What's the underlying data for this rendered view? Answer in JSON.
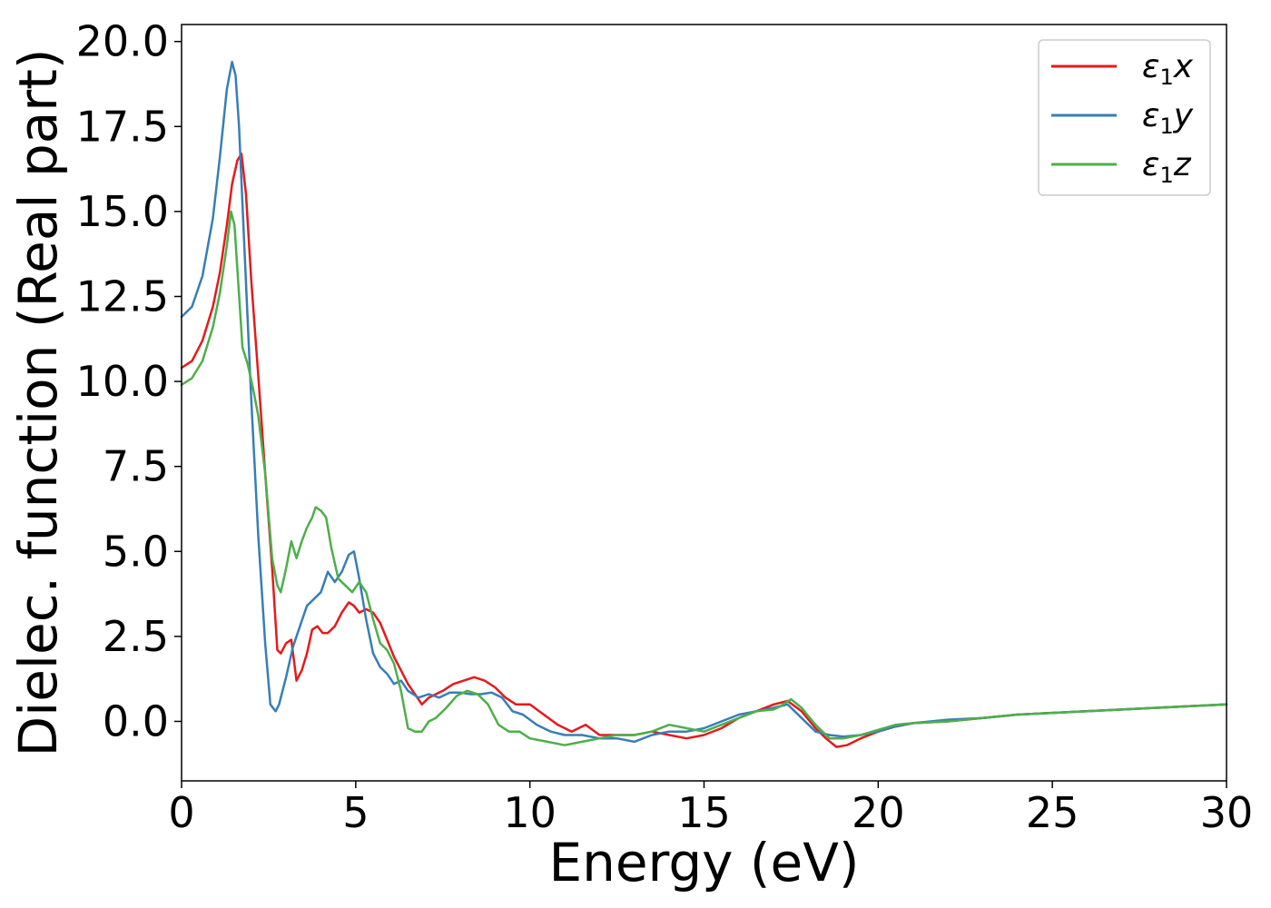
{
  "chart_data": {
    "type": "line",
    "title": "",
    "xlabel": "Energy (eV)",
    "ylabel": "Dielec. function (Real part)",
    "xlim": [
      0,
      30
    ],
    "ylim": [
      -1.75,
      20.5
    ],
    "xticks": [
      0,
      5,
      10,
      15,
      20,
      25,
      30
    ],
    "xtick_labels": [
      "0",
      "5",
      "10",
      "15",
      "20",
      "25",
      "30"
    ],
    "yticks": [
      0.0,
      2.5,
      5.0,
      7.5,
      10.0,
      12.5,
      15.0,
      17.5,
      20.0
    ],
    "ytick_labels": [
      "0.0",
      "2.5",
      "5.0",
      "7.5",
      "10.0",
      "12.5",
      "15.0",
      "17.5",
      "20.0"
    ],
    "grid": false,
    "legend_position": "top-right",
    "series": [
      {
        "name": "ε1x",
        "color": "#e41a1c",
        "x": [
          0,
          0.3,
          0.6,
          0.9,
          1.1,
          1.3,
          1.45,
          1.6,
          1.72,
          1.85,
          2.0,
          2.2,
          2.4,
          2.6,
          2.75,
          2.85,
          3.0,
          3.15,
          3.3,
          3.45,
          3.6,
          3.75,
          3.9,
          4.05,
          4.2,
          4.4,
          4.6,
          4.8,
          4.95,
          5.1,
          5.3,
          5.5,
          5.7,
          5.9,
          6.1,
          6.3,
          6.5,
          6.7,
          6.9,
          7.1,
          7.3,
          7.5,
          7.8,
          8.1,
          8.4,
          8.7,
          9.0,
          9.3,
          9.6,
          10.0,
          10.4,
          10.8,
          11.2,
          11.6,
          12.0,
          12.5,
          13.0,
          13.5,
          14.0,
          14.5,
          15.0,
          15.5,
          16.0,
          16.5,
          17.0,
          17.4,
          17.8,
          18.2,
          18.5,
          18.8,
          19.1,
          19.5,
          20.0,
          20.5,
          21.0,
          22.0,
          23.0,
          24.0,
          25.0,
          26.0,
          27.0,
          28.0,
          29.0,
          30.0
        ],
        "values": [
          10.4,
          10.6,
          11.2,
          12.2,
          13.2,
          14.6,
          15.8,
          16.5,
          16.7,
          15.5,
          13.0,
          10.2,
          7.3,
          4.5,
          2.1,
          2.0,
          2.3,
          2.4,
          1.2,
          1.5,
          2.0,
          2.7,
          2.8,
          2.6,
          2.6,
          2.8,
          3.2,
          3.5,
          3.4,
          3.2,
          3.3,
          3.2,
          2.9,
          2.4,
          1.9,
          1.5,
          1.1,
          0.8,
          0.5,
          0.7,
          0.8,
          0.9,
          1.1,
          1.2,
          1.3,
          1.2,
          1.0,
          0.7,
          0.5,
          0.5,
          0.2,
          -0.1,
          -0.3,
          -0.1,
          -0.4,
          -0.4,
          -0.4,
          -0.3,
          -0.4,
          -0.5,
          -0.4,
          -0.2,
          0.1,
          0.3,
          0.5,
          0.6,
          0.3,
          -0.2,
          -0.5,
          -0.75,
          -0.7,
          -0.5,
          -0.3,
          -0.15,
          -0.05,
          0.0,
          0.1,
          0.2,
          0.25,
          0.3,
          0.35,
          0.4,
          0.45,
          0.5
        ]
      },
      {
        "name": "ε1y",
        "color": "#377eb8",
        "x": [
          0,
          0.3,
          0.6,
          0.9,
          1.1,
          1.3,
          1.45,
          1.55,
          1.65,
          1.8,
          2.0,
          2.2,
          2.4,
          2.55,
          2.7,
          2.8,
          3.0,
          3.2,
          3.4,
          3.6,
          3.8,
          4.0,
          4.2,
          4.4,
          4.6,
          4.8,
          4.95,
          5.1,
          5.3,
          5.5,
          5.7,
          5.9,
          6.1,
          6.3,
          6.5,
          6.8,
          7.1,
          7.4,
          7.7,
          8.0,
          8.3,
          8.6,
          8.9,
          9.2,
          9.5,
          9.8,
          10.2,
          10.6,
          11.0,
          11.5,
          12.0,
          12.5,
          13.0,
          13.5,
          14.0,
          14.5,
          15.0,
          15.5,
          16.0,
          16.5,
          17.0,
          17.4,
          17.8,
          18.2,
          18.6,
          19.0,
          19.5,
          20.0,
          20.5,
          21.0,
          22.0,
          23.0,
          24.0,
          25.0,
          26.0,
          27.0,
          28.0,
          29.0,
          30.0
        ],
        "values": [
          11.9,
          12.2,
          13.1,
          14.8,
          16.6,
          18.6,
          19.4,
          19.0,
          17.5,
          14.0,
          9.5,
          5.5,
          2.3,
          0.5,
          0.3,
          0.5,
          1.3,
          2.2,
          2.8,
          3.4,
          3.6,
          3.8,
          4.4,
          4.1,
          4.4,
          4.9,
          5.0,
          4.2,
          3.0,
          2.0,
          1.6,
          1.4,
          1.1,
          1.2,
          0.9,
          0.7,
          0.8,
          0.7,
          0.85,
          0.85,
          0.8,
          0.8,
          0.85,
          0.7,
          0.3,
          0.2,
          -0.1,
          -0.3,
          -0.4,
          -0.4,
          -0.5,
          -0.5,
          -0.6,
          -0.4,
          -0.3,
          -0.3,
          -0.2,
          0.0,
          0.2,
          0.3,
          0.4,
          0.5,
          0.1,
          -0.3,
          -0.4,
          -0.45,
          -0.4,
          -0.3,
          -0.15,
          -0.05,
          0.05,
          0.1,
          0.2,
          0.25,
          0.3,
          0.35,
          0.4,
          0.45,
          0.5
        ]
      },
      {
        "name": "ε1z",
        "color": "#4daf4a",
        "x": [
          0,
          0.3,
          0.6,
          0.9,
          1.1,
          1.3,
          1.42,
          1.52,
          1.62,
          1.75,
          1.9,
          2.05,
          2.2,
          2.4,
          2.6,
          2.75,
          2.85,
          3.0,
          3.15,
          3.3,
          3.45,
          3.6,
          3.75,
          3.85,
          4.0,
          4.15,
          4.3,
          4.5,
          4.7,
          4.9,
          5.1,
          5.3,
          5.5,
          5.7,
          5.9,
          6.1,
          6.3,
          6.5,
          6.7,
          6.9,
          7.1,
          7.3,
          7.6,
          7.9,
          8.2,
          8.5,
          8.8,
          9.1,
          9.4,
          9.7,
          10.0,
          10.5,
          11.0,
          11.5,
          12.0,
          12.5,
          13.0,
          13.5,
          14.0,
          14.5,
          15.0,
          15.5,
          16.0,
          16.5,
          17.0,
          17.2,
          17.5,
          17.8,
          18.2,
          18.6,
          19.0,
          19.5,
          20.0,
          20.5,
          21.0,
          22.0,
          23.0,
          24.0,
          25.0,
          26.0,
          27.0,
          28.0,
          29.0,
          30.0
        ],
        "values": [
          9.9,
          10.1,
          10.6,
          11.6,
          12.6,
          14.0,
          15.0,
          14.6,
          13.0,
          11.0,
          10.5,
          9.8,
          9.0,
          7.3,
          4.8,
          4.0,
          3.8,
          4.5,
          5.3,
          4.8,
          5.3,
          5.7,
          6.0,
          6.3,
          6.2,
          6.0,
          5.1,
          4.2,
          4.0,
          3.8,
          4.1,
          3.8,
          3.0,
          2.3,
          2.1,
          1.7,
          0.9,
          -0.2,
          -0.3,
          -0.3,
          0.0,
          0.1,
          0.4,
          0.75,
          0.9,
          0.8,
          0.5,
          -0.1,
          -0.3,
          -0.3,
          -0.5,
          -0.6,
          -0.7,
          -0.6,
          -0.5,
          -0.4,
          -0.4,
          -0.3,
          -0.1,
          -0.2,
          -0.3,
          -0.1,
          0.1,
          0.3,
          0.35,
          0.45,
          0.65,
          0.4,
          -0.1,
          -0.5,
          -0.5,
          -0.4,
          -0.25,
          -0.1,
          -0.05,
          0.0,
          0.1,
          0.2,
          0.25,
          0.3,
          0.35,
          0.4,
          0.45,
          0.5
        ]
      }
    ]
  }
}
